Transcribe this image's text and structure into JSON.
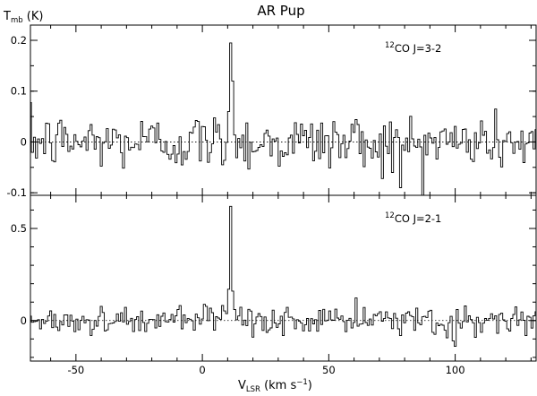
{
  "figure": {
    "title": "AR Pup",
    "ylabel_main": "T",
    "ylabel_sub": "mb",
    "ylabel_unit": " (K)",
    "xlabel_main": "V",
    "xlabel_sub": "LSR",
    "xlabel_unit_pre": " (km s",
    "xlabel_unit_sup": "−1",
    "xlabel_unit_post": ")"
  },
  "chart_data": [
    {
      "type": "line",
      "name": "12CO J=3-2 panel",
      "annotation": {
        "iso": "12",
        "text": "CO J=3-2"
      },
      "xlim": [
        -68,
        132
      ],
      "ylim": [
        -0.105,
        0.23
      ],
      "yticks": [
        {
          "value": 0.2,
          "label": "0.2"
        },
        {
          "value": 0.1,
          "label": "0.1"
        },
        {
          "value": 0,
          "label": "0"
        },
        {
          "value": -0.1,
          "label": "-0.1"
        }
      ],
      "x_start": -68,
      "x_step": 0.8,
      "peak": {
        "x_center": 11.6,
        "values": [
          0.06,
          0.195,
          0.12
        ]
      },
      "noise_sigma": 0.028,
      "dips": [
        {
          "x": 78,
          "value": -0.09
        },
        {
          "x": 75,
          "value": -0.06
        },
        {
          "x": 10.5,
          "value": -0.065
        }
      ]
    },
    {
      "type": "line",
      "name": "12CO J=2-1 panel",
      "annotation": {
        "iso": "12",
        "text": "CO J=2-1"
      },
      "xlim": [
        -68,
        132
      ],
      "ylim": [
        -0.22,
        0.68
      ],
      "yticks": [
        {
          "value": 0.5,
          "label": "0.5"
        },
        {
          "value": 0,
          "label": "0"
        }
      ],
      "xticks": [
        {
          "value": -50,
          "label": "-50"
        },
        {
          "value": 0,
          "label": "0"
        },
        {
          "value": 50,
          "label": "50"
        },
        {
          "value": 100,
          "label": "100"
        }
      ],
      "x_start": -68,
      "x_step": 0.8,
      "peak": {
        "x_center": 11.6,
        "values": [
          0.17,
          0.62,
          0.16
        ]
      },
      "noise_sigma": 0.04,
      "dips": [
        {
          "x": 100,
          "value": -0.14
        },
        {
          "x": 99,
          "value": -0.11
        }
      ]
    }
  ]
}
